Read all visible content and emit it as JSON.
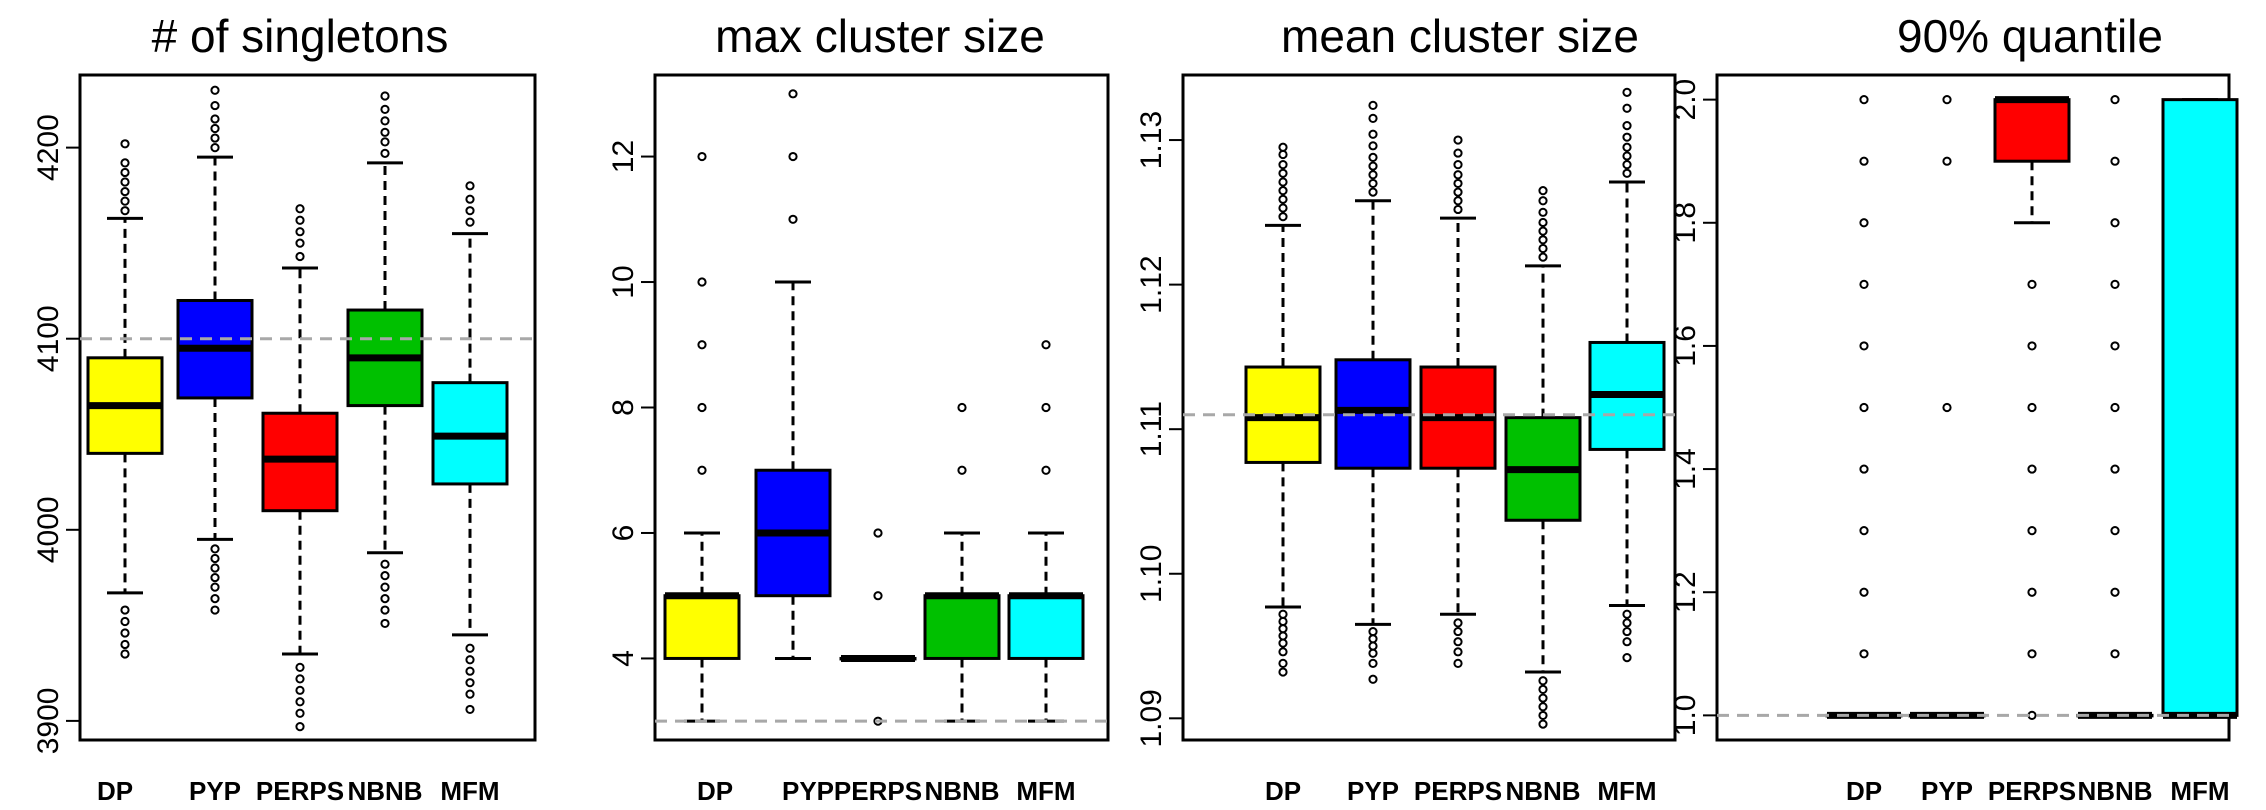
{
  "chart_data": [
    {
      "type": "box",
      "title": "# of singletons",
      "categories": [
        "DP",
        "PYP",
        "PERPS",
        "NBNB",
        "MFM"
      ],
      "yticks": [
        3900,
        4000,
        4100,
        4200
      ],
      "ylim": [
        3890,
        4238
      ],
      "reference_line": 4100,
      "colors": [
        "#ffff00",
        "#0000ff",
        "#ff0000",
        "#00c000",
        "#00ffff"
      ],
      "boxes": [
        {
          "q1": 4040,
          "median": 4065,
          "q3": 4090,
          "whisker_low": 3967,
          "whisker_high": 4163,
          "outliers": [
            3958,
            3952,
            3946,
            3940,
            3935,
            4167,
            4172,
            4177,
            4182,
            4187,
            4192,
            4202
          ]
        },
        {
          "q1": 4069,
          "median": 4095,
          "q3": 4120,
          "whisker_low": 3995,
          "whisker_high": 4195,
          "outliers": [
            3990,
            3985,
            3980,
            3975,
            3970,
            3964,
            3958,
            4200,
            4205,
            4210,
            4215,
            4222,
            4230
          ]
        },
        {
          "q1": 4010,
          "median": 4037,
          "q3": 4061,
          "whisker_low": 3935,
          "whisker_high": 4137,
          "outliers": [
            3928,
            3922,
            3916,
            3910,
            3904,
            3897,
            4143,
            4150,
            4156,
            4162,
            4168
          ]
        },
        {
          "q1": 4065,
          "median": 4090,
          "q3": 4115,
          "whisker_low": 3988,
          "whisker_high": 4192,
          "outliers": [
            3982,
            3976,
            3970,
            3964,
            3958,
            3951,
            4197,
            4203,
            4208,
            4214,
            4220,
            4227
          ]
        },
        {
          "q1": 4024,
          "median": 4049,
          "q3": 4077,
          "whisker_low": 3945,
          "whisker_high": 4155,
          "outliers": [
            3938,
            3932,
            3926,
            3920,
            3914,
            3906,
            4161,
            4167,
            4173,
            4180
          ]
        }
      ]
    },
    {
      "type": "box",
      "title": "max cluster size",
      "categories": [
        "DP",
        "PYP",
        "PERPS",
        "NBNB",
        "MFM"
      ],
      "yticks": [
        4,
        6,
        8,
        10,
        12
      ],
      "ylim": [
        2.7,
        13.3
      ],
      "reference_line": 3,
      "colors": [
        "#ffff00",
        "#0000ff",
        "#ff0000",
        "#00c000",
        "#00ffff"
      ],
      "boxes": [
        {
          "q1": 4,
          "median": 5,
          "q3": 5,
          "whisker_low": 3,
          "whisker_high": 6,
          "outliers": [
            7,
            8,
            9,
            10,
            12
          ]
        },
        {
          "q1": 5,
          "median": 6,
          "q3": 7,
          "whisker_low": 4,
          "whisker_high": 10,
          "outliers": [
            11,
            12,
            13
          ]
        },
        {
          "q1": 4,
          "median": 4,
          "q3": 4,
          "whisker_low": 4,
          "whisker_high": 4,
          "outliers": [
            3,
            5,
            6
          ]
        },
        {
          "q1": 4,
          "median": 5,
          "q3": 5,
          "whisker_low": 3,
          "whisker_high": 6,
          "outliers": [
            7,
            8
          ]
        },
        {
          "q1": 4,
          "median": 5,
          "q3": 5,
          "whisker_low": 3,
          "whisker_high": 6,
          "outliers": [
            7,
            8,
            9
          ]
        }
      ]
    },
    {
      "type": "box",
      "title": "mean cluster size",
      "categories": [
        "DP",
        "PYP",
        "PERPS",
        "NBNB",
        "MFM"
      ],
      "yticks": [
        1.09,
        1.1,
        1.11,
        1.12,
        1.13
      ],
      "ytick_labels": [
        "1.09",
        "1.10",
        "1.11",
        "1.12",
        "1.13"
      ],
      "ylim": [
        1.0885,
        1.1345
      ],
      "reference_line": 1.111,
      "colors": [
        "#ffff00",
        "#0000ff",
        "#ff0000",
        "#00c000",
        "#00ffff"
      ],
      "boxes": [
        {
          "q1": 1.1077,
          "median": 1.1108,
          "q3": 1.1143,
          "whisker_low": 1.0977,
          "whisker_high": 1.1241,
          "outliers": [
            1.0972,
            1.0967,
            1.0962,
            1.0957,
            1.0952,
            1.0946,
            1.0938,
            1.0932,
            1.1247,
            1.1253,
            1.1259,
            1.1265,
            1.1271,
            1.1277,
            1.1283,
            1.129,
            1.1295
          ]
        },
        {
          "q1": 1.1073,
          "median": 1.1113,
          "q3": 1.1148,
          "whisker_low": 1.0965,
          "whisker_high": 1.1258,
          "outliers": [
            1.096,
            1.0955,
            1.095,
            1.0945,
            1.0938,
            1.0927,
            1.1264,
            1.127,
            1.1276,
            1.1282,
            1.1288,
            1.1296,
            1.1304,
            1.1315,
            1.1324
          ]
        },
        {
          "q1": 1.1073,
          "median": 1.1108,
          "q3": 1.1143,
          "whisker_low": 1.0972,
          "whisker_high": 1.1246,
          "outliers": [
            1.0966,
            1.096,
            1.0953,
            1.0946,
            1.0938,
            1.1252,
            1.1258,
            1.1264,
            1.127,
            1.1276,
            1.1283,
            1.1291,
            1.13
          ]
        },
        {
          "q1": 1.1037,
          "median": 1.1072,
          "q3": 1.1108,
          "whisker_low": 1.0932,
          "whisker_high": 1.1213,
          "outliers": [
            1.0926,
            1.092,
            1.0914,
            1.0908,
            1.0902,
            1.0896,
            1.1219,
            1.1225,
            1.1231,
            1.1237,
            1.1243,
            1.125,
            1.1258,
            1.1265
          ]
        },
        {
          "q1": 1.1086,
          "median": 1.1124,
          "q3": 1.116,
          "whisker_low": 1.0978,
          "whisker_high": 1.1271,
          "outliers": [
            1.0972,
            1.0966,
            1.096,
            1.0953,
            1.0942,
            1.1277,
            1.1283,
            1.1289,
            1.1295,
            1.1302,
            1.131,
            1.1322,
            1.1333
          ]
        }
      ]
    },
    {
      "type": "box",
      "title": "90% quantile",
      "categories": [
        "DP",
        "PYP",
        "PERPS",
        "NBNB",
        "MFM"
      ],
      "yticks": [
        1.0,
        1.2,
        1.4,
        1.6,
        1.8,
        2.0
      ],
      "ytick_labels": [
        "1.0",
        "1.2",
        "1.4",
        "1.6",
        "1.8",
        "2.0"
      ],
      "ylim": [
        0.96,
        2.04
      ],
      "reference_line": 1.0,
      "colors": [
        "#ffff00",
        "#0000ff",
        "#ff0000",
        "#00c000",
        "#00ffff"
      ],
      "boxes": [
        {
          "q1": 1.0,
          "median": 1.0,
          "q3": 1.0,
          "whisker_low": 1.0,
          "whisker_high": 1.0,
          "outliers": [
            1.1,
            1.2,
            1.3,
            1.4,
            1.5,
            1.6,
            1.7,
            1.8,
            1.9,
            2.0
          ]
        },
        {
          "q1": 1.0,
          "median": 1.0,
          "q3": 1.0,
          "whisker_low": 1.0,
          "whisker_high": 1.0,
          "outliers": [
            1.5,
            1.9,
            2.0
          ]
        },
        {
          "q1": 1.9,
          "median": 2.0,
          "q3": 2.0,
          "whisker_low": 1.8,
          "whisker_high": 2.0,
          "outliers": [
            1.0,
            1.1,
            1.2,
            1.3,
            1.4,
            1.5,
            1.6,
            1.7
          ]
        },
        {
          "q1": 1.0,
          "median": 1.0,
          "q3": 1.0,
          "whisker_low": 1.0,
          "whisker_high": 1.0,
          "outliers": [
            1.1,
            1.2,
            1.3,
            1.4,
            1.5,
            1.6,
            1.7,
            1.8,
            1.9,
            2.0
          ]
        },
        {
          "q1": 1.0,
          "median": 1.0,
          "q3": 2.0,
          "whisker_low": 1.0,
          "whisker_high": 2.0,
          "outliers": []
        }
      ]
    }
  ]
}
